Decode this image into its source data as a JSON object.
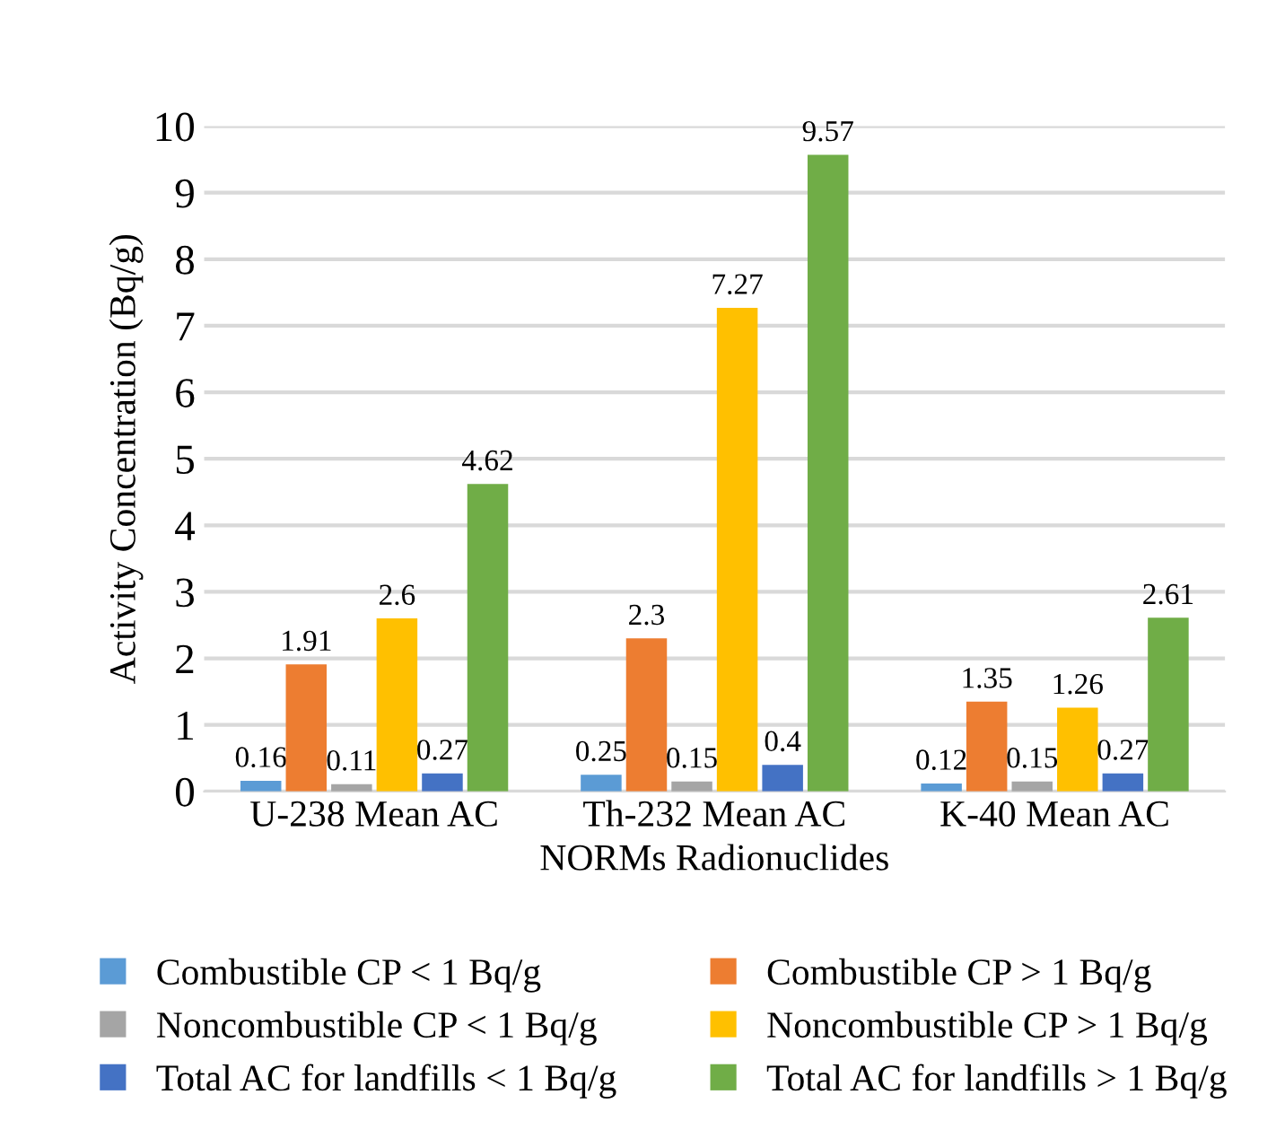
{
  "chart_data": {
    "type": "bar",
    "categories": [
      "U-238 Mean AC",
      "Th-232 Mean AC",
      "K-40 Mean AC"
    ],
    "xlabel": "NORMs Radionuclides",
    "ylabel": "Activity Concentration (Bq/g)",
    "ylim": [
      0,
      10
    ],
    "yticks": [
      0,
      1,
      2,
      3,
      4,
      5,
      6,
      7,
      8,
      9,
      10
    ],
    "grid": "y",
    "legend": "bottom",
    "data_labels": true,
    "series": [
      {
        "name": "Combustible CP < 1 Bq/g",
        "color": "#5b9bd5",
        "values": [
          0.16,
          0.25,
          0.12
        ]
      },
      {
        "name": "Combustible CP > 1 Bq/g",
        "color": "#ed7d31",
        "values": [
          1.91,
          2.3,
          1.35
        ]
      },
      {
        "name": "Noncombustible CP < 1 Bq/g",
        "color": "#a5a5a5",
        "values": [
          0.11,
          0.15,
          0.15
        ]
      },
      {
        "name": "Noncombustible CP > 1 Bq/g",
        "color": "#ffc000",
        "values": [
          2.6,
          7.27,
          1.26
        ]
      },
      {
        "name": "Total AC for landfills < 1 Bq/g",
        "color": "#4472c4",
        "values": [
          0.27,
          0.4,
          0.27
        ]
      },
      {
        "name": "Total AC for landfills > 1 Bq/g",
        "color": "#70ad47",
        "values": [
          4.62,
          9.57,
          2.61
        ]
      }
    ]
  }
}
